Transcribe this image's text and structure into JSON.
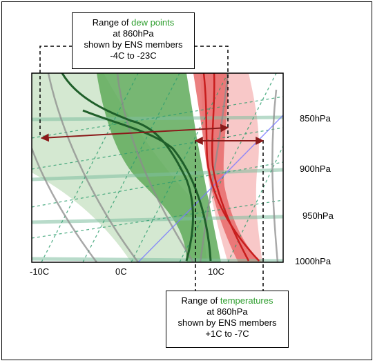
{
  "dew_callout": {
    "line1_prefix": "Range of ",
    "line1_highlight": "dew points",
    "line2": "at 860hPa",
    "line3": "shown by ENS members",
    "line4": "-4C to -23C"
  },
  "temp_callout": {
    "line1_prefix": "Range of ",
    "line1_highlight": "temperatures",
    "line2": "at 860hPa",
    "line3": "shown by ENS members",
    "line4": "+1C to -7C"
  },
  "pressure_levels": [
    "850hPa",
    "900hPa",
    "950hPa",
    "1000hPa"
  ],
  "temperature_ticks": [
    "-10C",
    "0C",
    "10C"
  ],
  "colors": {
    "dew_green": "#2e9e2e",
    "temp_red": "#e02020",
    "arrow": "#8b1a1a",
    "highlight_text": "#2e9e2e"
  }
}
